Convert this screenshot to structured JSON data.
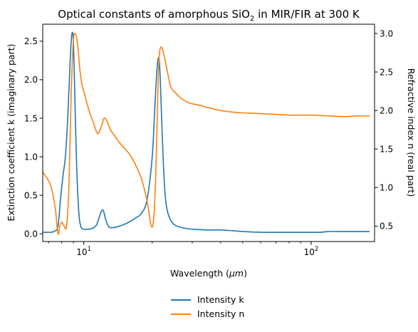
{
  "chart_data": {
    "type": "line",
    "title": "Optical constants of amorphous  SiO",
    "title_subscript": "2",
    "title_suffix": " in MIR/FIR at 300 K",
    "xlabel": "Wavelength (",
    "xlabel_unit": "μm",
    "xlabel_suffix": ")",
    "ylabel_left": "Extinction coefficient k (imaginary part)",
    "ylabel_right": "Refractive index n (real part)",
    "x_scale": "log",
    "xlim": [
      6.6,
      190
    ],
    "ylim_left": [
      -0.1,
      2.72
    ],
    "ylim_right": [
      0.3,
      3.12
    ],
    "x_tick_labels": [
      {
        "value": 10,
        "base": "10",
        "exp": "1"
      },
      {
        "value": 100,
        "base": "10",
        "exp": "2"
      }
    ],
    "y_left_ticks": [
      "0.0",
      "0.5",
      "1.0",
      "1.5",
      "2.0",
      "2.5"
    ],
    "y_right_ticks": [
      "0.5",
      "1.0",
      "1.5",
      "2.0",
      "2.5",
      "3.0"
    ],
    "legend_position": "below plot",
    "series": [
      {
        "name": "Intensity k",
        "axis": "left",
        "color": "#1f77b4",
        "x": [
          6.6,
          7.0,
          7.4,
          7.7,
          7.9,
          8.1,
          8.3,
          8.5,
          8.7,
          8.85,
          9.0,
          9.15,
          9.3,
          9.5,
          9.7,
          10.0,
          10.4,
          10.9,
          11.4,
          11.9,
          12.2,
          12.5,
          12.9,
          13.4,
          14.0,
          15.0,
          16.0,
          17.0,
          18.0,
          19.0,
          20.0,
          20.5,
          21.0,
          21.4,
          21.7,
          22.0,
          22.4,
          22.8,
          23.3,
          24.0,
          25.0,
          27.0,
          30.0,
          35.0,
          40.0,
          45.0,
          50.0,
          60.0,
          70.0,
          80.0,
          90.0,
          100.0,
          110.0,
          120.0,
          140.0,
          160.0,
          180.0
        ],
        "y": [
          0.02,
          0.02,
          0.03,
          0.1,
          0.45,
          0.75,
          1.0,
          1.5,
          2.2,
          2.58,
          2.5,
          1.7,
          0.9,
          0.3,
          0.1,
          0.06,
          0.06,
          0.07,
          0.12,
          0.28,
          0.3,
          0.18,
          0.09,
          0.08,
          0.09,
          0.12,
          0.16,
          0.21,
          0.27,
          0.45,
          1.0,
          1.6,
          2.15,
          2.28,
          2.0,
          1.5,
          0.9,
          0.5,
          0.3,
          0.19,
          0.12,
          0.08,
          0.06,
          0.05,
          0.05,
          0.04,
          0.03,
          0.02,
          0.02,
          0.02,
          0.02,
          0.02,
          0.02,
          0.03,
          0.03,
          0.03,
          0.03
        ]
      },
      {
        "name": "Intensity n",
        "axis": "right",
        "color": "#ff7f0e",
        "x": [
          6.6,
          6.9,
          7.2,
          7.5,
          7.7,
          7.85,
          8.0,
          8.2,
          8.4,
          8.6,
          8.8,
          9.0,
          9.2,
          9.4,
          9.6,
          9.8,
          10.1,
          10.5,
          11.0,
          11.5,
          11.9,
          12.3,
          12.7,
          13.1,
          13.6,
          14.2,
          15.0,
          16.0,
          17.0,
          18.0,
          19.0,
          19.8,
          20.3,
          20.7,
          21.0,
          21.3,
          21.6,
          22.0,
          22.4,
          22.8,
          23.4,
          24.2,
          25.5,
          27.0,
          29.0,
          32.0,
          36.0,
          40.0,
          45.0,
          50.0,
          60.0,
          70.0,
          80.0,
          100.0,
          120.0,
          140.0,
          160.0,
          180.0
        ],
        "y": [
          1.2,
          1.12,
          1.0,
          0.72,
          0.4,
          0.5,
          0.55,
          0.5,
          0.5,
          1.0,
          2.2,
          2.9,
          2.99,
          2.85,
          2.55,
          2.35,
          2.2,
          2.02,
          1.85,
          1.7,
          1.78,
          1.9,
          1.85,
          1.75,
          1.68,
          1.6,
          1.52,
          1.42,
          1.28,
          1.1,
          0.82,
          0.5,
          0.6,
          1.1,
          1.8,
          2.5,
          2.78,
          2.82,
          2.75,
          2.65,
          2.48,
          2.3,
          2.22,
          2.15,
          2.1,
          2.07,
          2.03,
          2.0,
          1.98,
          1.97,
          1.96,
          1.95,
          1.94,
          1.94,
          1.93,
          1.92,
          1.93,
          1.93
        ]
      }
    ]
  }
}
